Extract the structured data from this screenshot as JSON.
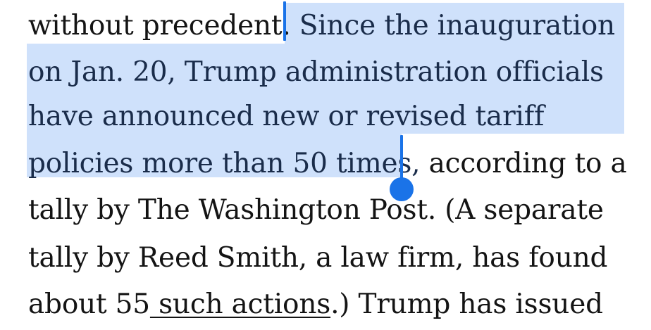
{
  "article": {
    "lines": [
      {
        "before": "without precedent. ",
        "selected": "Since the inauguration",
        "after": ""
      },
      {
        "before": "",
        "selected": "on Jan. 20, Trump administration officials",
        "after": ""
      },
      {
        "before": "",
        "selected": "have announced new or revised tariff",
        "after": ""
      },
      {
        "before": "",
        "selected": "policies more than 50 times,",
        "after": " according to a"
      },
      {
        "text": "tally by The Washington Post. (A separate"
      },
      {
        "text": "tally by Reed Smith, a law firm, has found"
      },
      {
        "before": "about 55",
        "link": " such actions",
        "after": ".) Trump has issued"
      }
    ]
  },
  "selection": {
    "highlight_color": "#cfe1fb",
    "handle_color": "#1a73e8"
  }
}
